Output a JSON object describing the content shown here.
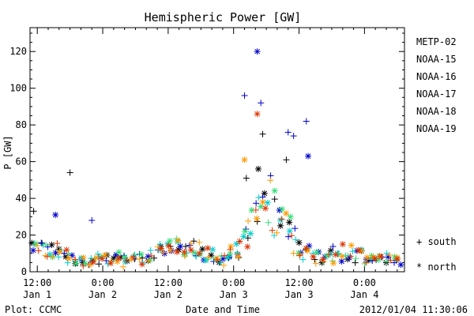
{
  "chart_data": {
    "type": "scatter",
    "title": "Hemispheric Power [GW]",
    "xlabel": "Date and Time",
    "ylabel": "P [GW]",
    "ylim": [
      0,
      133
    ],
    "xlim_hours": [
      -2,
      101
    ],
    "y_ticks": [
      0,
      20,
      40,
      60,
      80,
      100,
      120
    ],
    "x_ticks": [
      {
        "hour": 0,
        "line1": "12:00",
        "line2": "Jan 1"
      },
      {
        "hour": 18,
        "line1": "0:00",
        "line2": "Jan 2"
      },
      {
        "hour": 36,
        "line1": "12:00",
        "line2": "Jan 2"
      },
      {
        "hour": 54,
        "line1": "0:00",
        "line2": "Jan 3"
      },
      {
        "hour": 72,
        "line1": "12:00",
        "line2": "Jan 3"
      },
      {
        "hour": 90,
        "line1": "0:00",
        "line2": "Jan 4"
      }
    ],
    "series": [
      {
        "name": "METP-02",
        "color": "#000000"
      },
      {
        "name": "NOAA-15",
        "color": "#0000cc"
      },
      {
        "name": "NOAA-16",
        "color": "#00cccc"
      },
      {
        "name": "NOAA-17",
        "color": "#33dd77"
      },
      {
        "name": "NOAA-18",
        "color": "#ff9900"
      },
      {
        "name": "NOAA-19",
        "color": "#dd3300"
      }
    ],
    "markers": [
      {
        "label": "+ south"
      },
      {
        "label": "* north"
      }
    ],
    "highlight_points": [
      {
        "series": "METP-02",
        "marker": "south",
        "x": -1.0,
        "y": 33
      },
      {
        "series": "METP-02",
        "marker": "south",
        "x": 9.0,
        "y": 54
      },
      {
        "series": "NOAA-15",
        "marker": "north",
        "x": 5.0,
        "y": 31
      },
      {
        "series": "NOAA-15",
        "marker": "south",
        "x": 15.0,
        "y": 28
      },
      {
        "series": "NOAA-15",
        "marker": "south",
        "x": 57.0,
        "y": 96
      },
      {
        "series": "NOAA-15",
        "marker": "north",
        "x": 60.5,
        "y": 120
      },
      {
        "series": "NOAA-15",
        "marker": "south",
        "x": 61.5,
        "y": 92
      },
      {
        "series": "NOAA-15",
        "marker": "south",
        "x": 69.0,
        "y": 76
      },
      {
        "series": "NOAA-15",
        "marker": "south",
        "x": 70.5,
        "y": 74
      },
      {
        "series": "NOAA-15",
        "marker": "south",
        "x": 74.0,
        "y": 82
      },
      {
        "series": "NOAA-19",
        "marker": "north",
        "x": 60.5,
        "y": 86
      },
      {
        "series": "METP-02",
        "marker": "south",
        "x": 62.0,
        "y": 75
      },
      {
        "series": "NOAA-18",
        "marker": "north",
        "x": 57.0,
        "y": 61
      },
      {
        "series": "METP-02",
        "marker": "north",
        "x": 60.8,
        "y": 56
      },
      {
        "series": "METP-02",
        "marker": "south",
        "x": 68.5,
        "y": 61
      },
      {
        "series": "NOAA-15",
        "marker": "north",
        "x": 74.5,
        "y": 63
      },
      {
        "series": "METP-02",
        "marker": "south",
        "x": 57.5,
        "y": 51
      }
    ]
  },
  "footer": {
    "left": "Plot: CCMC",
    "center": "Date and Time",
    "right": "2012/01/04 11:30:06"
  }
}
